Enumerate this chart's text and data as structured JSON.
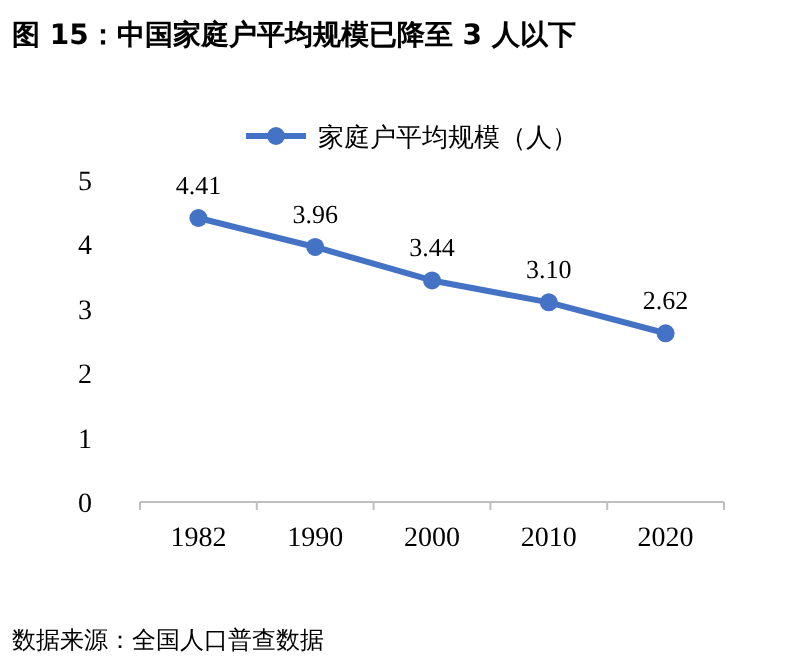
{
  "chart_data": {
    "type": "line",
    "title": "图 15：中国家庭户平均规模已降至 3 人以下",
    "categories": [
      "1982",
      "1990",
      "2000",
      "2010",
      "2020"
    ],
    "series": [
      {
        "name": "家庭户平均规模（人）",
        "color": "#4472c4",
        "values": [
          4.41,
          3.96,
          3.44,
          3.1,
          2.62
        ],
        "value_labels": [
          "4.41",
          "3.96",
          "3.44",
          "3.10",
          "2.62"
        ]
      }
    ],
    "ylim": [
      0,
      5
    ],
    "yticks": [
      0,
      1,
      2,
      3,
      4,
      5
    ],
    "legend": "top",
    "marker": "circle",
    "line_style": "solid",
    "grid": false,
    "annotations": [
      "数据来源：全国人口普查数据"
    ]
  }
}
